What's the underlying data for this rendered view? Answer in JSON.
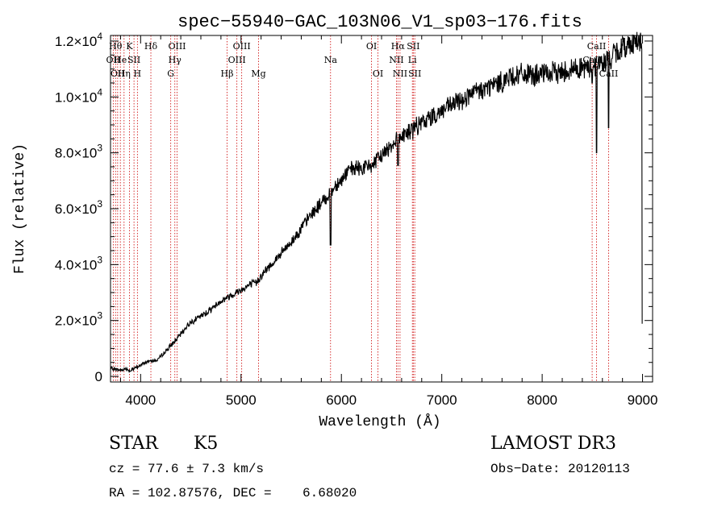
{
  "chart_data": {
    "type": "line",
    "title": "spec−55940−GAC_103N06_V1_sp03−176.fits",
    "xlabel": "Wavelength (Å)",
    "ylabel": "Flux (relative)",
    "xlim": [
      3700,
      9100
    ],
    "ylim": [
      -200,
      12200
    ],
    "x_ticks": [
      4000,
      5000,
      6000,
      7000,
      8000,
      9000
    ],
    "x_tick_labels": [
      "4000",
      "5000",
      "6000",
      "7000",
      "8000",
      "9000"
    ],
    "y_ticks": [
      0,
      2000,
      4000,
      6000,
      8000,
      10000,
      12000
    ],
    "y_tick_labels": [
      {
        "mantissa": "0",
        "exponent": ""
      },
      {
        "mantissa": "2.0×10",
        "exponent": "3"
      },
      {
        "mantissa": "4.0×10",
        "exponent": "3"
      },
      {
        "mantissa": "6.0×10",
        "exponent": "3"
      },
      {
        "mantissa": "8.0×10",
        "exponent": "3"
      },
      {
        "mantissa": "1.0×10",
        "exponent": "4"
      },
      {
        "mantissa": "1.2×10",
        "exponent": "4"
      }
    ],
    "line_color": "#000000",
    "marker_line_color": "#cc0000",
    "series": [
      {
        "name": "spectrum",
        "x": [
          3700,
          3750,
          3800,
          3850,
          3900,
          3950,
          4000,
          4050,
          4100,
          4150,
          4200,
          4250,
          4300,
          4350,
          4400,
          4450,
          4500,
          4600,
          4700,
          4800,
          4850,
          4900,
          4950,
          5000,
          5050,
          5100,
          5150,
          5200,
          5300,
          5400,
          5500,
          5600,
          5700,
          5800,
          5850,
          5900,
          5950,
          6000,
          6050,
          6100,
          6150,
          6200,
          6250,
          6300,
          6350,
          6400,
          6450,
          6500,
          6550,
          6600,
          6650,
          6700,
          6750,
          6800,
          6900,
          7000,
          7100,
          7200,
          7300,
          7400,
          7500,
          7600,
          7700,
          7800,
          7850,
          7900,
          8000,
          8100,
          8200,
          8300,
          8400,
          8450,
          8500,
          8550,
          8600,
          8650,
          8700,
          8750,
          8800,
          8850,
          8900,
          8950,
          8980,
          9000
        ],
        "y": [
          300,
          250,
          220,
          280,
          200,
          300,
          400,
          500,
          600,
          550,
          700,
          900,
          1100,
          1300,
          1500,
          1750,
          1950,
          2150,
          2400,
          2700,
          2800,
          2900,
          3000,
          3100,
          3200,
          3300,
          3350,
          3600,
          4000,
          4400,
          4800,
          5300,
          5800,
          6200,
          6400,
          6600,
          6900,
          7000,
          7300,
          7400,
          7450,
          7450,
          7500,
          7550,
          7700,
          7900,
          8100,
          8300,
          8500,
          8600,
          8700,
          8800,
          8950,
          9050,
          9300,
          9500,
          9700,
          9900,
          10100,
          10250,
          10400,
          10550,
          10750,
          10800,
          10800,
          10750,
          10800,
          10850,
          10900,
          11000,
          11050,
          11000,
          11100,
          11150,
          11200,
          11300,
          11450,
          11600,
          11750,
          11850,
          11950,
          12050,
          11900,
          11500
        ],
        "features": [
          {
            "x": 5892,
            "y": 4700
          },
          {
            "x": 6563,
            "y": 7550
          },
          {
            "x": 8498,
            "y": 10500
          },
          {
            "x": 8542,
            "y": 8000
          },
          {
            "x": 8662,
            "y": 8900
          },
          {
            "x": 9000,
            "y": 1900
          }
        ]
      }
    ],
    "lines": [
      {
        "x": 3727,
        "label": "OII",
        "row": 2
      },
      {
        "x": 3750,
        "label": "Hθ",
        "row": 1
      },
      {
        "x": 3771,
        "label": "OII",
        "row": 3
      },
      {
        "x": 3798,
        "label": "He",
        "row": 2
      },
      {
        "x": 3835,
        "label": "Hη",
        "row": 3
      },
      {
        "x": 3889,
        "label": "K",
        "row": 1
      },
      {
        "x": 3934,
        "label": "SII",
        "row": 2
      },
      {
        "x": 3968,
        "label": "H",
        "row": 3
      },
      {
        "x": 4102,
        "label": "Hδ",
        "row": 1
      },
      {
        "x": 4300,
        "label": "G",
        "row": 3
      },
      {
        "x": 4341,
        "label": "Hγ",
        "row": 2
      },
      {
        "x": 4363,
        "label": "OIII",
        "row": 1
      },
      {
        "x": 4861,
        "label": "Hβ",
        "row": 3
      },
      {
        "x": 4959,
        "label": "OIII",
        "row": 2
      },
      {
        "x": 5007,
        "label": "OIII",
        "row": 1
      },
      {
        "x": 5175,
        "label": "Mg",
        "row": 3
      },
      {
        "x": 5892,
        "label": "Na",
        "row": 2
      },
      {
        "x": 6300,
        "label": "OI",
        "row": 1
      },
      {
        "x": 6364,
        "label": "OI",
        "row": 3
      },
      {
        "x": 6548,
        "label": "NII",
        "row": 2
      },
      {
        "x": 6563,
        "label": "Hα",
        "row": 1
      },
      {
        "x": 6584,
        "label": "NII",
        "row": 3
      },
      {
        "x": 6707,
        "label": "Li",
        "row": 2
      },
      {
        "x": 6716,
        "label": "SII",
        "row": 1
      },
      {
        "x": 6731,
        "label": "SII",
        "row": 3
      },
      {
        "x": 8498,
        "label": "CaII",
        "row": 2
      },
      {
        "x": 8542,
        "label": "CaII",
        "row": 1
      },
      {
        "x": 8662,
        "label": "CaII",
        "row": 3
      }
    ]
  },
  "info": {
    "class": "STAR",
    "subclass": "K5",
    "survey": "LAMOST DR3",
    "redshift": "cz = 77.6 ± 7.3 km/s",
    "obs_date": "Obs−Date: 20120113",
    "coords": "RA = 102.87576, DEC =    6.68020"
  }
}
